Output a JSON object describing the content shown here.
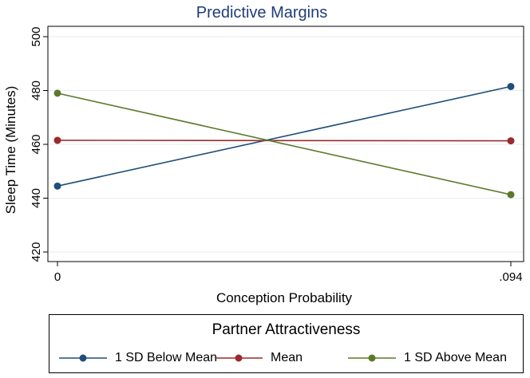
{
  "chart_data": {
    "type": "line",
    "title": "Predictive Margins",
    "xlabel": "Conception Probability",
    "ylabel": "Sleep Time (Minutes)",
    "x": [
      0,
      0.094
    ],
    "xtick_labels": [
      "0",
      ".094"
    ],
    "yticks": [
      420,
      440,
      460,
      480,
      500
    ],
    "xlim": [
      0,
      0.094
    ],
    "ylim": [
      420,
      500
    ],
    "grid": "horizontal",
    "legend": {
      "title": "Partner Attractiveness",
      "placement": "bottom"
    },
    "series": [
      {
        "name": "1 SD Below Mean",
        "values": [
          444.5,
          481.5
        ],
        "color": "#1f4e79"
      },
      {
        "name": "Mean",
        "values": [
          461.5,
          461.3
        ],
        "color": "#9b2a2a"
      },
      {
        "name": "1 SD Above Mean",
        "values": [
          479,
          441.3
        ],
        "color": "#5a7a2a"
      }
    ]
  }
}
